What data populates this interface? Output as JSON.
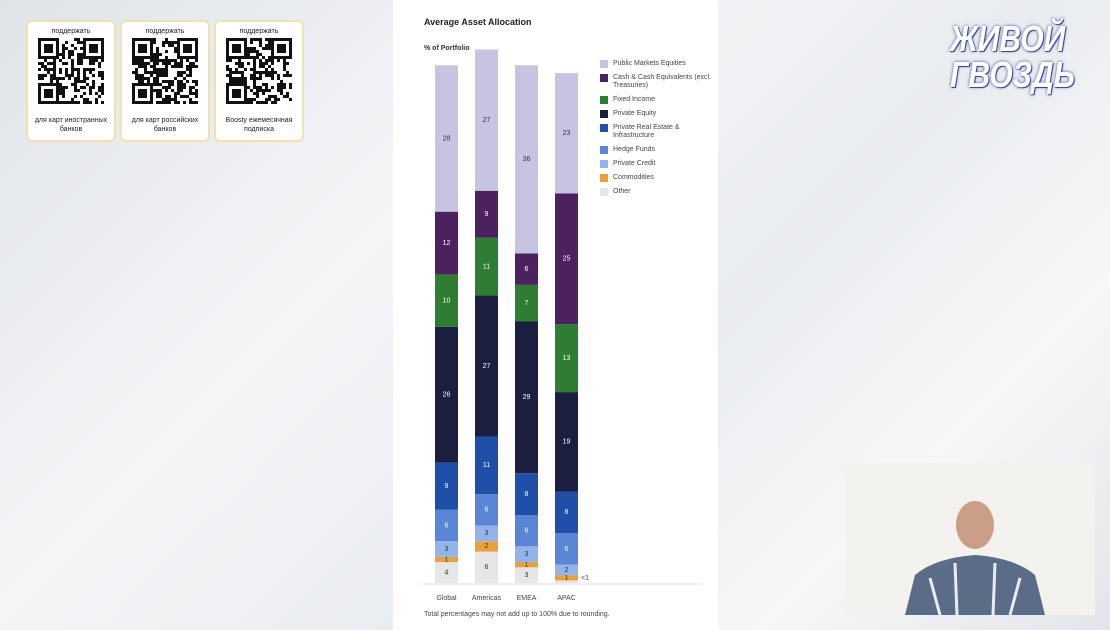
{
  "chart_data": {
    "type": "stacked-bar",
    "title": "Average Asset Allocation",
    "subtitle": "% of Portfolio",
    "categories": [
      "Global",
      "Americas",
      "EMEA",
      "APAC"
    ],
    "series": [
      {
        "name": "Other",
        "color": "#e6e6e8",
        "values": [
          4,
          6,
          3,
          0.5
        ],
        "value_labels": [
          "4",
          "6",
          "3",
          "<1"
        ]
      },
      {
        "name": "Commodities",
        "color": "#e9a23b",
        "values": [
          1,
          2,
          1,
          1
        ]
      },
      {
        "name": "Private Credit",
        "color": "#92b4ea",
        "values": [
          3,
          3,
          3,
          2
        ]
      },
      {
        "name": "Hedge Funds",
        "color": "#5b86d6",
        "values": [
          6,
          6,
          6,
          6
        ]
      },
      {
        "name": "Private Real Estate & Infrastructure",
        "color": "#1f4fa8",
        "values": [
          9,
          11,
          8,
          8
        ]
      },
      {
        "name": "Private Equity",
        "color": "#1b1f3f",
        "values": [
          26,
          27,
          29,
          19
        ]
      },
      {
        "name": "Fixed Income",
        "color": "#2f7d33",
        "values": [
          10,
          11,
          7,
          13
        ]
      },
      {
        "name": "Cash & Cash Equivalents (excl. Treasuries)",
        "color": "#4b215f",
        "values": [
          12,
          9,
          6,
          25
        ]
      },
      {
        "name": "Public Markets Equities",
        "color": "#c7c4e2",
        "values": [
          28,
          27,
          36,
          23
        ]
      }
    ],
    "note": "Total percentages may not add up to 100% due to rounding."
  },
  "overlay": {
    "qr_cards": [
      {
        "top": "поддержать",
        "bottom": "для карт иностранных банков"
      },
      {
        "top": "поддержать",
        "bottom": "для карт российских банков"
      },
      {
        "top": "поддержать",
        "bottom": "Boosty ежемесячная подписка"
      }
    ],
    "logo": [
      "ЖИВОЙ",
      "ГВОЗДЬ"
    ]
  }
}
